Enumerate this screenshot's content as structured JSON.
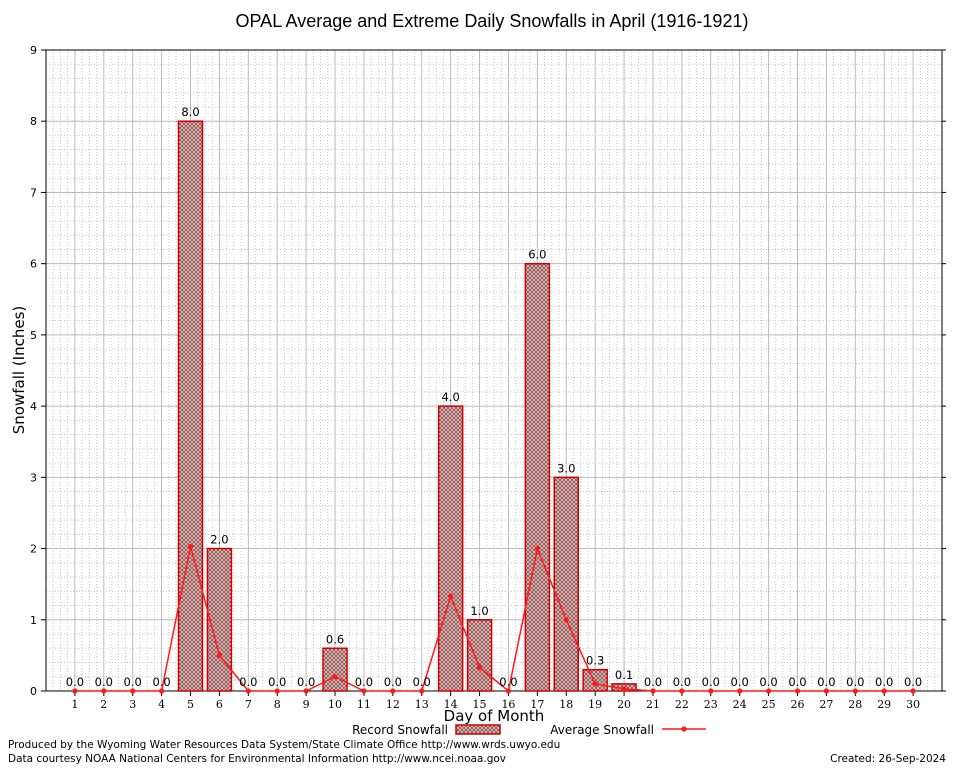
{
  "chart_data": {
    "type": "bar",
    "title": "OPAL Average and Extreme Daily Snowfalls in April (1916-1921)",
    "xlabel": "Day of Month",
    "ylabel": "Snowfall (Inches)",
    "ylim": [
      0,
      9
    ],
    "yticks": [
      "0",
      "1",
      "2",
      "3",
      "4",
      "5",
      "6",
      "7",
      "8",
      "9"
    ],
    "categories": [
      "1",
      "2",
      "3",
      "4",
      "5",
      "6",
      "7",
      "8",
      "9",
      "10",
      "11",
      "12",
      "13",
      "14",
      "15",
      "16",
      "17",
      "18",
      "19",
      "20",
      "21",
      "22",
      "23",
      "24",
      "25",
      "26",
      "27",
      "28",
      "29",
      "30"
    ],
    "series": [
      {
        "name": "Record Snowfall",
        "values": [
          0,
          0,
          0,
          0,
          8,
          2,
          0,
          0,
          0,
          0.6,
          0,
          0,
          0,
          4,
          1,
          0,
          6,
          3,
          0.3,
          0.1,
          0,
          0,
          0,
          0,
          0,
          0,
          0,
          0,
          0,
          0
        ],
        "labels": [
          "0.0",
          "0.0",
          "0.0",
          "0.0",
          "8.0",
          "2.0",
          "0.0",
          "0.0",
          "0.0",
          "0.6",
          "0.0",
          "0.0",
          "0.0",
          "4.0",
          "1.0",
          "0.0",
          "6.0",
          "3.0",
          "0.3",
          "0.1",
          "0.0",
          "0.0",
          "0.0",
          "0.0",
          "0.0",
          "0.0",
          "0.0",
          "0.0",
          "0.0",
          "0.0"
        ]
      },
      {
        "name": "Average Snowfall",
        "values": [
          0,
          0,
          0,
          0,
          2.03,
          0.5,
          0,
          0,
          0,
          0.2,
          0,
          0,
          0,
          1.33,
          0.33,
          0,
          2.0,
          1.0,
          0.1,
          0.03,
          0,
          0,
          0,
          0,
          0,
          0,
          0,
          0,
          0,
          0
        ]
      }
    ],
    "grid": true,
    "legend": "bottom-center"
  },
  "colors": {
    "bar_fill": "#c9a5a5",
    "bar_stroke": "#cc0000",
    "line": "#ff1a1a",
    "grid_major": "#bbbbbb",
    "grid_minor": "#bbbbbb"
  },
  "footer": {
    "produced_by": "Produced by the Wyoming Water Resources Data System/State Climate Office http://www.wrds.uwyo.edu",
    "courtesy": "Data courtesy NOAA National Centers for Environmental Information http://www.ncei.noaa.gov",
    "created": "Created: 26-Sep-2024"
  }
}
